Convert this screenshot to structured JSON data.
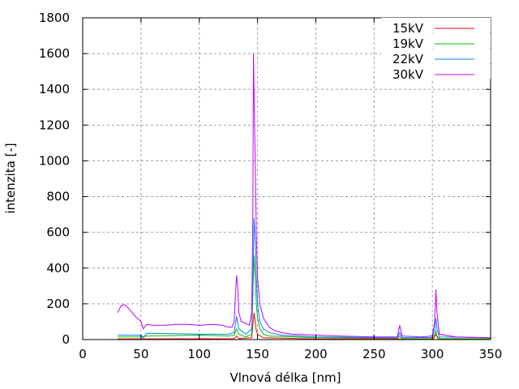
{
  "chart_data": {
    "type": "line",
    "title": "",
    "xlabel": "Vlnová délka [nm]",
    "ylabel": "intenzita [-]",
    "xlim": [
      0,
      350
    ],
    "ylim": [
      0,
      1800
    ],
    "xticks": [
      0,
      50,
      100,
      150,
      200,
      250,
      300,
      350
    ],
    "yticks": [
      0,
      200,
      400,
      600,
      800,
      1000,
      1200,
      1400,
      1600,
      1800
    ],
    "grid": true,
    "legend_position": "top-right",
    "series": [
      {
        "name": "15kV",
        "color": "#ff0000",
        "points": [
          [
            30,
            3
          ],
          [
            130,
            5
          ],
          [
            132,
            20
          ],
          [
            134,
            5
          ],
          [
            145,
            10
          ],
          [
            146,
            80
          ],
          [
            147,
            150
          ],
          [
            148,
            100
          ],
          [
            149,
            50
          ],
          [
            150,
            30
          ],
          [
            155,
            10
          ],
          [
            200,
            3
          ],
          [
            301,
            4
          ],
          [
            303,
            30
          ],
          [
            305,
            3
          ],
          [
            350,
            2
          ]
        ]
      },
      {
        "name": "19kV",
        "color": "#00c000",
        "points": [
          [
            30,
            15
          ],
          [
            50,
            15
          ],
          [
            55,
            20
          ],
          [
            100,
            25
          ],
          [
            125,
            20
          ],
          [
            130,
            25
          ],
          [
            132,
            60
          ],
          [
            134,
            30
          ],
          [
            140,
            15
          ],
          [
            145,
            30
          ],
          [
            146,
            250
          ],
          [
            147,
            470
          ],
          [
            148,
            350
          ],
          [
            149,
            200
          ],
          [
            150,
            120
          ],
          [
            152,
            60
          ],
          [
            155,
            30
          ],
          [
            160,
            20
          ],
          [
            200,
            10
          ],
          [
            270,
            8
          ],
          [
            272,
            20
          ],
          [
            274,
            5
          ],
          [
            300,
            6
          ],
          [
            302,
            30
          ],
          [
            303,
            50
          ],
          [
            304,
            20
          ],
          [
            306,
            6
          ],
          [
            350,
            5
          ]
        ]
      },
      {
        "name": "22kV",
        "color": "#0080ff",
        "points": [
          [
            30,
            25
          ],
          [
            50,
            25
          ],
          [
            52,
            10
          ],
          [
            55,
            35
          ],
          [
            100,
            30
          ],
          [
            125,
            30
          ],
          [
            130,
            40
          ],
          [
            132,
            130
          ],
          [
            134,
            60
          ],
          [
            140,
            30
          ],
          [
            145,
            60
          ],
          [
            146,
            300
          ],
          [
            146.5,
            500
          ],
          [
            147,
            680
          ],
          [
            148,
            550
          ],
          [
            149,
            350
          ],
          [
            150,
            200
          ],
          [
            152,
            100
          ],
          [
            155,
            60
          ],
          [
            160,
            40
          ],
          [
            170,
            25
          ],
          [
            200,
            15
          ],
          [
            270,
            10
          ],
          [
            272,
            40
          ],
          [
            274,
            10
          ],
          [
            300,
            12
          ],
          [
            302,
            60
          ],
          [
            303,
            120
          ],
          [
            304,
            60
          ],
          [
            306,
            15
          ],
          [
            350,
            10
          ]
        ]
      },
      {
        "name": "30kV",
        "color": "#c000ff",
        "points": [
          [
            30,
            150
          ],
          [
            33,
            190
          ],
          [
            36,
            195
          ],
          [
            40,
            170
          ],
          [
            45,
            130
          ],
          [
            50,
            100
          ],
          [
            52,
            60
          ],
          [
            55,
            85
          ],
          [
            60,
            80
          ],
          [
            70,
            80
          ],
          [
            80,
            85
          ],
          [
            90,
            85
          ],
          [
            100,
            80
          ],
          [
            110,
            85
          ],
          [
            120,
            80
          ],
          [
            125,
            70
          ],
          [
            128,
            70
          ],
          [
            130,
            100
          ],
          [
            131,
            250
          ],
          [
            132,
            360
          ],
          [
            133,
            300
          ],
          [
            134,
            150
          ],
          [
            136,
            100
          ],
          [
            140,
            90
          ],
          [
            143,
            80
          ],
          [
            145,
            150
          ],
          [
            146,
            700
          ],
          [
            146.5,
            1600
          ],
          [
            147,
            1380
          ],
          [
            148,
            1000
          ],
          [
            149,
            600
          ],
          [
            150,
            350
          ],
          [
            152,
            200
          ],
          [
            155,
            120
          ],
          [
            160,
            70
          ],
          [
            165,
            50
          ],
          [
            170,
            40
          ],
          [
            180,
            30
          ],
          [
            200,
            25
          ],
          [
            220,
            20
          ],
          [
            250,
            15
          ],
          [
            270,
            15
          ],
          [
            272,
            80
          ],
          [
            274,
            20
          ],
          [
            290,
            15
          ],
          [
            300,
            20
          ],
          [
            302,
            100
          ],
          [
            303,
            280
          ],
          [
            304,
            150
          ],
          [
            306,
            30
          ],
          [
            320,
            15
          ],
          [
            350,
            10
          ]
        ]
      }
    ]
  }
}
